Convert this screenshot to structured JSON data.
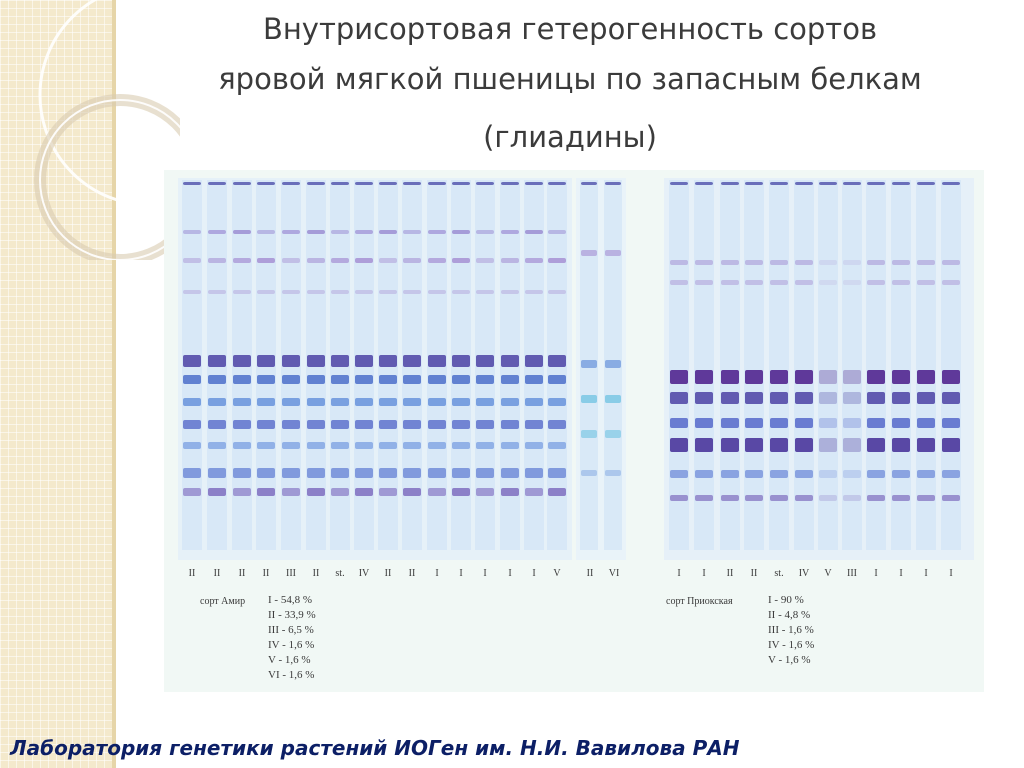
{
  "slide": {
    "title_line1": "Внутрисортовая гетерогенность сортов",
    "title_line2": "яровой мягкой пшеницы по запасным белкам",
    "title_line3": "(глиадины)",
    "footer": "Лаборатория генетики растений ИОГен им. Н.И. Вавилова РАН"
  },
  "gel_left": {
    "variety": "сорт Амир",
    "lane_labels": [
      "II",
      "II",
      "II",
      "II",
      "III",
      "II",
      "st.",
      "IV",
      "II",
      "II",
      "I",
      "I",
      "I",
      "I",
      "I",
      "V",
      "II",
      "VI"
    ],
    "frequencies": [
      "I  - 54,8 %",
      "II  - 33,9 %",
      "III -  6,5 %",
      "IV -  1,6 %",
      "V  -  1,6 %",
      "VI -  1,6 %"
    ]
  },
  "gel_right": {
    "variety": "сорт Приокская",
    "lane_labels": [
      "I",
      "I",
      "II",
      "II",
      "st.",
      "IV",
      "V",
      "III",
      "I",
      "I",
      "I",
      "I"
    ],
    "frequencies": [
      "I  -  90 %",
      "II  - 4,8 %",
      "III - 1,6 %",
      "IV - 1,6 %",
      "V  - 1,6 %"
    ]
  },
  "colors": {
    "title": "#3b3b3b",
    "footer": "#0c1f66",
    "side_strip": "#f4e9cc",
    "gel_background": "#f1f8f5",
    "band_purple": "#5a2a9a",
    "band_blue": "#3a6fd0"
  }
}
